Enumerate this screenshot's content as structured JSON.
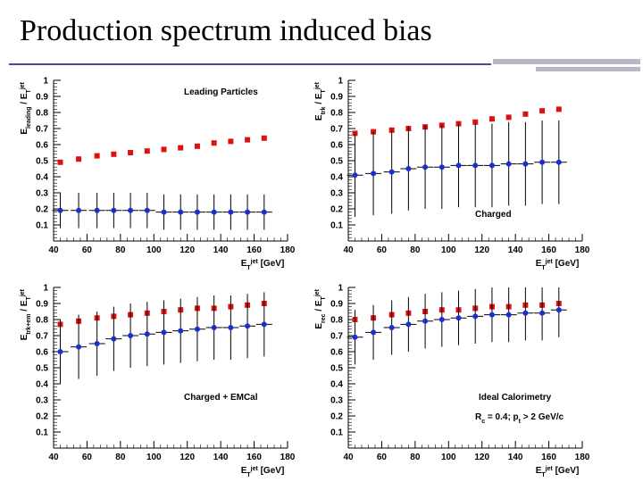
{
  "slide": {
    "title": "Production spectrum induced bias"
  },
  "colors": {
    "red": "#dd1111",
    "blue": "#1a2fd0",
    "rule": "#4a4a8a",
    "deco": "#b8b8c8"
  },
  "chart_data": [
    {
      "type": "scatter",
      "title": "",
      "annotation": "Leading  Particles",
      "annotation_lines": [],
      "ylabel": "E_leading / E_T^{jet}",
      "xlabel": "E_T^{jet} [GeV]",
      "xlim": [
        40,
        180
      ],
      "ylim": [
        0,
        1
      ],
      "x_ticks": [
        "40",
        "60",
        "80",
        "100",
        "120",
        "140",
        "160",
        "180"
      ],
      "y_ticks": [
        "0.1",
        "0.2",
        "0.3",
        "0.4",
        "0.5",
        "0.6",
        "0.7",
        "0.8",
        "0.9",
        "1"
      ],
      "series": [
        {
          "name": "red",
          "color": "red",
          "x": [
            44,
            55,
            66,
            76,
            86,
            96,
            106,
            116,
            126,
            136,
            146,
            156,
            166
          ],
          "y": [
            0.49,
            0.51,
            0.53,
            0.54,
            0.55,
            0.56,
            0.57,
            0.58,
            0.59,
            0.61,
            0.62,
            0.63,
            0.64
          ]
        },
        {
          "name": "blue",
          "color": "blue",
          "x": [
            44,
            55,
            66,
            76,
            86,
            96,
            106,
            116,
            126,
            136,
            146,
            156,
            166
          ],
          "y": [
            0.19,
            0.19,
            0.19,
            0.19,
            0.19,
            0.19,
            0.18,
            0.18,
            0.18,
            0.18,
            0.18,
            0.18,
            0.18
          ],
          "err": 0.11
        }
      ]
    },
    {
      "type": "scatter",
      "title": "",
      "annotation": "Charged",
      "annotation_lines": [],
      "ylabel": "E_trk / E_T^{jet}",
      "xlabel": "E_T^{jet} [GeV]",
      "xlim": [
        40,
        180
      ],
      "ylim": [
        0,
        1
      ],
      "x_ticks": [
        "40",
        "60",
        "80",
        "100",
        "120",
        "140",
        "160",
        "180"
      ],
      "y_ticks": [
        "0.1",
        "0.2",
        "0.3",
        "0.4",
        "0.5",
        "0.6",
        "0.7",
        "0.8",
        "0.9",
        "1"
      ],
      "series": [
        {
          "name": "red",
          "color": "red",
          "x": [
            44,
            55,
            66,
            76,
            86,
            96,
            106,
            116,
            126,
            136,
            146,
            156,
            166
          ],
          "y": [
            0.67,
            0.68,
            0.69,
            0.7,
            0.71,
            0.72,
            0.73,
            0.74,
            0.76,
            0.77,
            0.79,
            0.81,
            0.82
          ]
        },
        {
          "name": "blue",
          "color": "blue",
          "x": [
            44,
            55,
            66,
            76,
            86,
            96,
            106,
            116,
            126,
            136,
            146,
            156,
            166
          ],
          "y": [
            0.41,
            0.42,
            0.43,
            0.45,
            0.46,
            0.46,
            0.47,
            0.47,
            0.47,
            0.48,
            0.48,
            0.49,
            0.49
          ],
          "err": 0.26
        }
      ]
    },
    {
      "type": "scatter",
      "title": "",
      "annotation": "Charged  +  EMCal",
      "annotation_lines": [],
      "ylabel": "E_trk+em / E_T^{jet}",
      "xlabel": "E_T^{jet} [GeV]",
      "xlim": [
        40,
        180
      ],
      "ylim": [
        0,
        1
      ],
      "x_ticks": [
        "40",
        "60",
        "80",
        "100",
        "120",
        "140",
        "160",
        "180"
      ],
      "y_ticks": [
        "0.1",
        "0.2",
        "0.3",
        "0.4",
        "0.5",
        "0.6",
        "0.7",
        "0.8",
        "0.9",
        "1"
      ],
      "series": [
        {
          "name": "red",
          "color": "red",
          "x": [
            44,
            55,
            66,
            76,
            86,
            96,
            106,
            116,
            126,
            136,
            146,
            156,
            166
          ],
          "y": [
            0.77,
            0.79,
            0.81,
            0.82,
            0.83,
            0.84,
            0.85,
            0.86,
            0.87,
            0.87,
            0.88,
            0.89,
            0.9
          ]
        },
        {
          "name": "blue",
          "color": "blue",
          "x": [
            44,
            55,
            66,
            76,
            86,
            96,
            106,
            116,
            126,
            136,
            146,
            156,
            166
          ],
          "y": [
            0.6,
            0.63,
            0.65,
            0.68,
            0.7,
            0.71,
            0.72,
            0.73,
            0.74,
            0.75,
            0.75,
            0.76,
            0.77
          ],
          "err": 0.2
        }
      ]
    },
    {
      "type": "scatter",
      "title": "",
      "annotation": "Ideal  Calorimetry",
      "annotation_lines": [
        "R_c  =  0.4;  p_t >  2  GeV/c"
      ],
      "ylabel": "E_rec / E_T^{jet}",
      "xlabel": "E_T^{jet} [GeV]",
      "xlim": [
        40,
        180
      ],
      "ylim": [
        0,
        1
      ],
      "x_ticks": [
        "40",
        "60",
        "80",
        "100",
        "120",
        "140",
        "160",
        "180"
      ],
      "y_ticks": [
        "0.1",
        "0.2",
        "0.3",
        "0.4",
        "0.5",
        "0.6",
        "0.7",
        "0.8",
        "0.9",
        "1"
      ],
      "series": [
        {
          "name": "red",
          "color": "red",
          "x": [
            44,
            55,
            66,
            76,
            86,
            96,
            106,
            116,
            126,
            136,
            146,
            156,
            166
          ],
          "y": [
            0.8,
            0.81,
            0.83,
            0.84,
            0.85,
            0.86,
            0.86,
            0.87,
            0.88,
            0.88,
            0.89,
            0.89,
            0.9
          ]
        },
        {
          "name": "blue",
          "color": "blue",
          "x": [
            44,
            55,
            66,
            76,
            86,
            96,
            106,
            116,
            126,
            136,
            146,
            156,
            166
          ],
          "y": [
            0.69,
            0.72,
            0.75,
            0.77,
            0.79,
            0.8,
            0.81,
            0.82,
            0.83,
            0.83,
            0.84,
            0.84,
            0.86
          ],
          "err": 0.17
        }
      ]
    }
  ]
}
